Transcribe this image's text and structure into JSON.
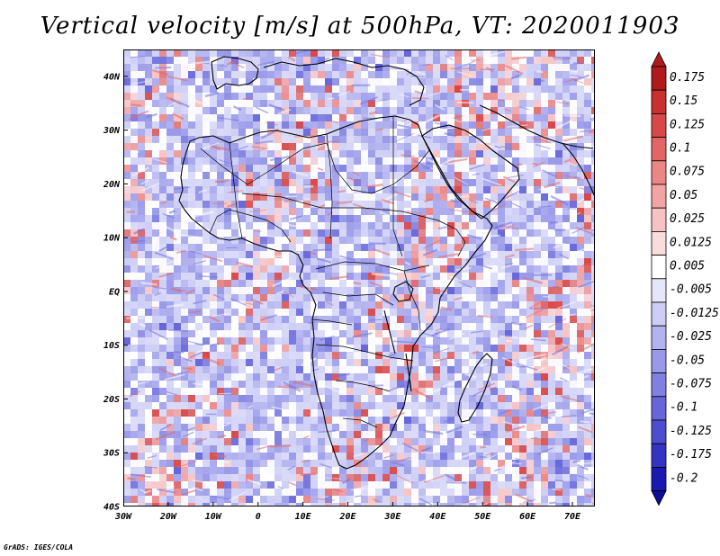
{
  "title": "Vertical velocity [m/s] at 500hPa, VT: 2020011903",
  "credit": "GrADS: IGES/COLA",
  "lat_labels": [
    "40N",
    "30N",
    "20N",
    "10N",
    "EQ",
    "10S",
    "20S",
    "30S",
    "40S"
  ],
  "lon_labels": [
    "30W",
    "20W",
    "10W",
    "0",
    "10E",
    "20E",
    "30E",
    "40E",
    "50E",
    "60E",
    "70E"
  ],
  "colorbar": {
    "labels": [
      "0.175",
      "0.15",
      "0.125",
      "0.1",
      "0.075",
      "0.05",
      "0.025",
      "0.0125",
      "0.005",
      "-0.005",
      "-0.0125",
      "-0.025",
      "-0.05",
      "-0.075",
      "-0.1",
      "-0.125",
      "-0.175",
      "-0.2"
    ],
    "colors": [
      "#b01a1a",
      "#c93030",
      "#d84848",
      "#e36565",
      "#ec8585",
      "#f2a3a3",
      "#f7c2c2",
      "#fadcdc",
      "#ffffff",
      "#e6e6fb",
      "#cdcdf6",
      "#b3b3f0",
      "#9999ea",
      "#8080e2",
      "#6666da",
      "#4d4dd0",
      "#3333c4",
      "#1a1ab0"
    ]
  },
  "field_colors": {
    "positive": [
      "#f7c2c2",
      "#ec8585",
      "#d84848"
    ],
    "negative": [
      "#cdcdf6",
      "#9999ea",
      "#6666da"
    ],
    "background": "#ffffff"
  }
}
